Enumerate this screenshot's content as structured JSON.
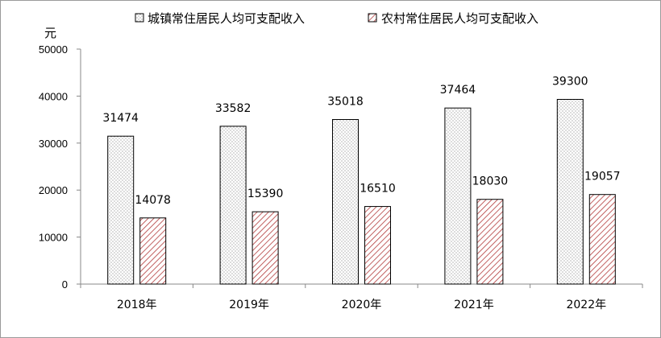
{
  "chart_data": {
    "type": "bar",
    "categories": [
      "2018年",
      "2019年",
      "2020年",
      "2021年",
      "2022年"
    ],
    "series": [
      {
        "name": "城镇常住居民人均可支配收入",
        "values": [
          31474,
          33582,
          35018,
          37464,
          39300
        ],
        "pattern": "dots"
      },
      {
        "name": "农村常住居民人均可支配收入",
        "values": [
          14078,
          15390,
          16510,
          18030,
          19057
        ],
        "pattern": "hatch"
      }
    ],
    "ylabel": "元",
    "ylim": [
      0,
      50000
    ],
    "yticks": [
      0,
      10000,
      20000,
      30000,
      40000,
      50000
    ],
    "grid": false,
    "legend": "top",
    "data_labels": true
  },
  "colors": {
    "axis": "#888888",
    "bar_outline": "#000000",
    "hatch": "#b23a3a",
    "dots": "#555555"
  }
}
